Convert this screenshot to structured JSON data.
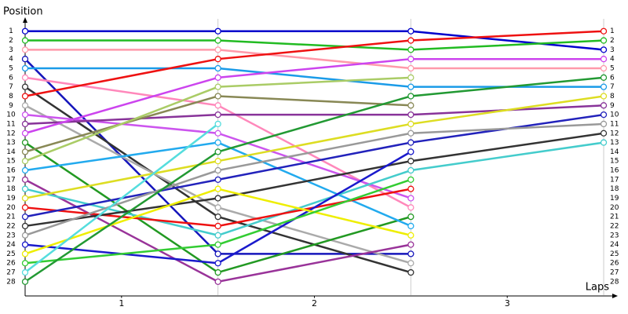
{
  "chart_data": {
    "type": "lap",
    "y_label": "Position",
    "x_label": "Laps",
    "x": [
      0,
      1,
      2,
      3
    ],
    "xlim": [
      0,
      3.065
    ],
    "xticks": [
      {
        "value": 0.5,
        "label": "1"
      },
      {
        "value": 1.5,
        "label": "2"
      },
      {
        "value": 2.5,
        "label": "3"
      }
    ],
    "ylim": [
      29.5,
      -0.5
    ],
    "yticks": [
      1,
      2,
      3,
      4,
      5,
      6,
      7,
      8,
      9,
      10,
      11,
      12,
      13,
      14,
      15,
      16,
      17,
      18,
      19,
      20,
      21,
      22,
      23,
      24,
      25,
      26,
      27,
      28
    ],
    "y2lim": [
      29.5,
      -0.5
    ],
    "y2ticks": [
      1,
      2,
      3,
      4,
      5,
      6,
      7,
      8,
      9,
      10,
      11,
      12,
      13,
      14,
      15,
      16,
      17,
      18,
      19,
      20,
      21,
      22,
      23,
      24,
      25,
      26,
      27,
      28
    ],
    "series": [
      {
        "color": "#0000cc",
        "values": [
          1,
          1,
          1,
          3
        ]
      },
      {
        "color": "#22bb22",
        "values": [
          2,
          2,
          3,
          2
        ]
      },
      {
        "color": "#ff99aa",
        "values": [
          3,
          3,
          5,
          5
        ]
      },
      {
        "color": "#1515bb",
        "values": [
          4,
          25,
          25,
          null
        ]
      },
      {
        "color": "#1a9be8",
        "values": [
          5,
          5,
          7,
          7
        ]
      },
      {
        "color": "#ff88bb",
        "values": [
          6,
          9,
          20,
          null
        ]
      },
      {
        "color": "#333333",
        "values": [
          7,
          21,
          27,
          null
        ]
      },
      {
        "color": "#ee1111",
        "values": [
          8,
          4,
          2,
          1
        ]
      },
      {
        "color": "#aaaaaa",
        "values": [
          9,
          20,
          26,
          null
        ]
      },
      {
        "color": "#cc55ee",
        "values": [
          10,
          12,
          19,
          null
        ]
      },
      {
        "color": "#883399",
        "values": [
          11,
          10,
          10,
          9
        ]
      },
      {
        "color": "#cc44ee",
        "values": [
          12,
          6,
          4,
          4
        ]
      },
      {
        "color": "#229922",
        "values": [
          13,
          27,
          21,
          null
        ]
      },
      {
        "color": "#888855",
        "values": [
          14,
          8,
          9,
          null
        ]
      },
      {
        "color": "#aacc66",
        "values": [
          15,
          7,
          6,
          null
        ]
      },
      {
        "color": "#22aaee",
        "values": [
          16,
          13,
          22,
          null
        ]
      },
      {
        "color": "#993399",
        "values": [
          17,
          28,
          24,
          null
        ]
      },
      {
        "color": "#44cccc",
        "values": [
          18,
          23,
          16,
          13
        ]
      },
      {
        "color": "#dddd22",
        "values": [
          19,
          15,
          11,
          8
        ]
      },
      {
        "color": "#ee1111",
        "values": [
          20,
          22,
          18,
          null
        ]
      },
      {
        "color": "#2222bb",
        "values": [
          21,
          17,
          13,
          10
        ]
      },
      {
        "color": "#333333",
        "values": [
          22,
          19,
          15,
          12
        ]
      },
      {
        "color": "#999999",
        "values": [
          23,
          16,
          12,
          11
        ]
      },
      {
        "color": "#1a1acc",
        "values": [
          24,
          26,
          14,
          null
        ]
      },
      {
        "color": "#eeee00",
        "values": [
          25,
          18,
          23,
          null
        ]
      },
      {
        "color": "#33cc33",
        "values": [
          26,
          24,
          17,
          null
        ]
      },
      {
        "color": "#55dddd",
        "values": [
          27,
          11,
          null,
          null
        ]
      },
      {
        "color": "#229933",
        "values": [
          28,
          14,
          8,
          6
        ]
      }
    ]
  }
}
